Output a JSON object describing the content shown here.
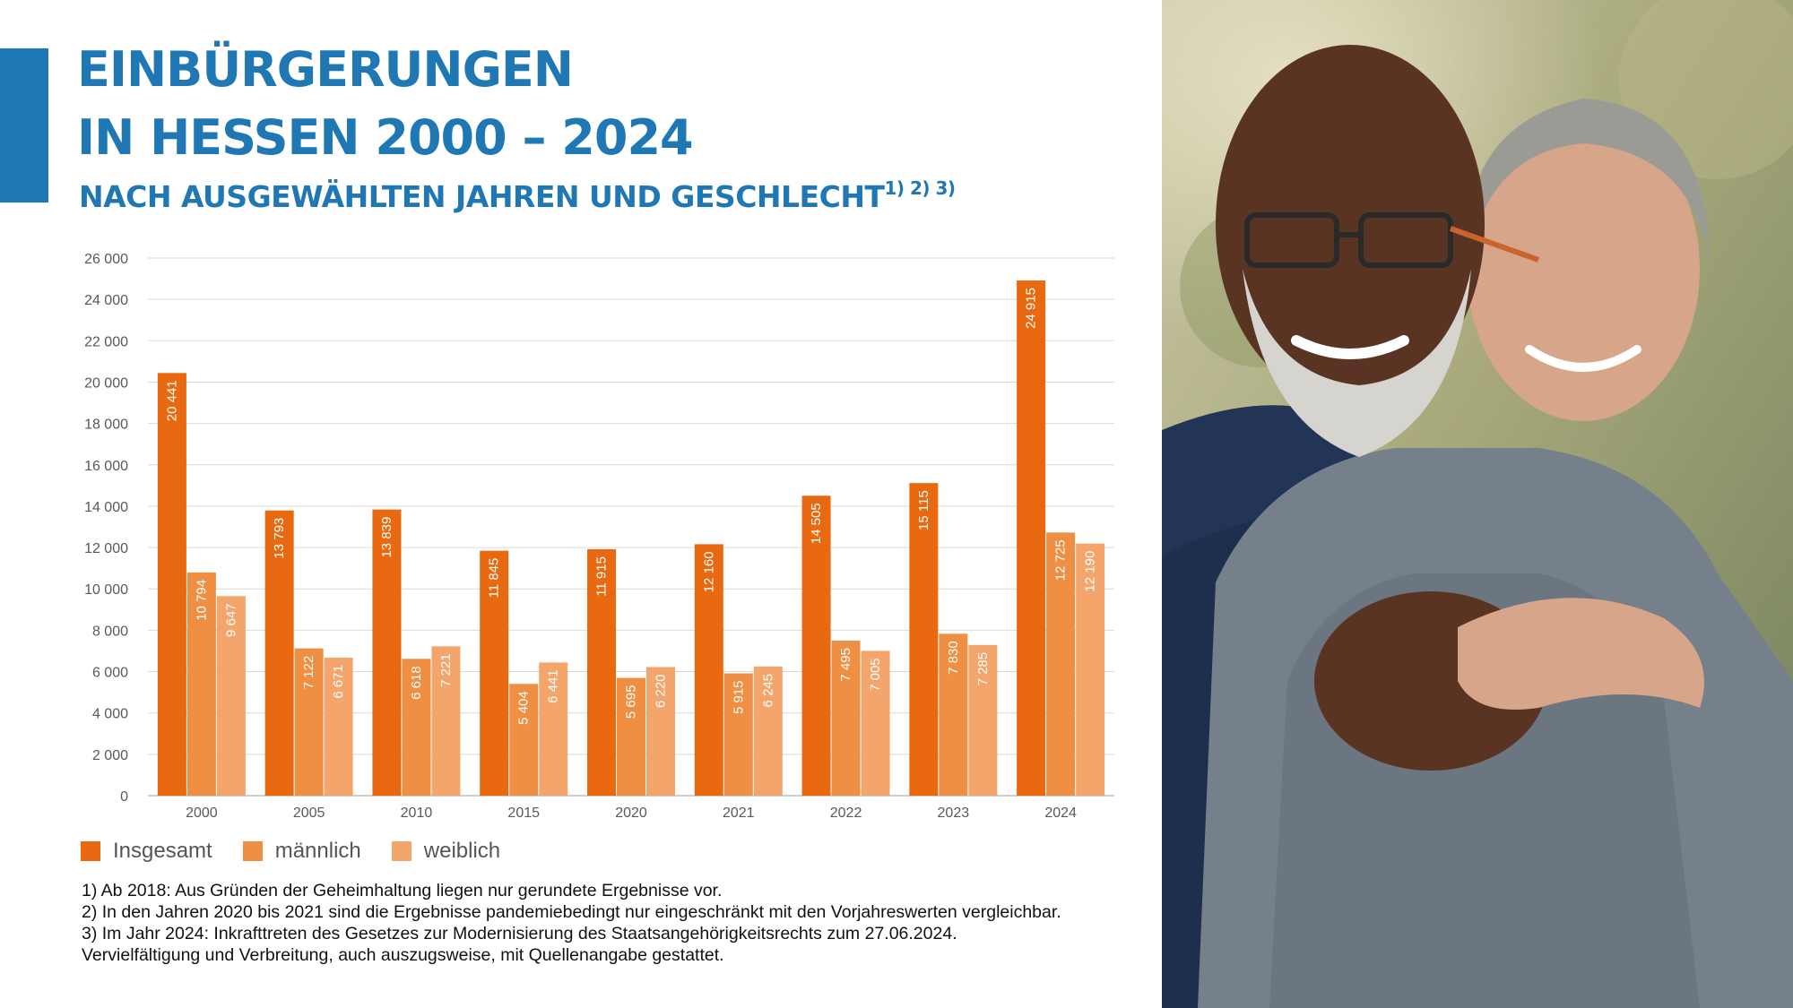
{
  "header": {
    "title_line1": "EINBÜRGERUNGEN",
    "title_line2": "IN HESSEN 2000 – 2024",
    "subtitle": "NACH AUSGEWÄHLTEN JAHREN UND GESCHLECHT",
    "subtitle_notes": "1) 2) 3)"
  },
  "chart_data": {
    "type": "bar",
    "categories": [
      "2000",
      "2005",
      "2010",
      "2015",
      "2020",
      "2021",
      "2022",
      "2023",
      "2024"
    ],
    "series": [
      {
        "name": "Insgesamt",
        "color": "#e8690f",
        "values": [
          20441,
          13793,
          13839,
          11845,
          11915,
          12160,
          14505,
          15115,
          24915
        ],
        "labels": [
          "20 441",
          "13 793",
          "13 839",
          "11 845",
          "11 915",
          "12 160",
          "14 505",
          "15 115",
          "24 915"
        ]
      },
      {
        "name": "männlich",
        "color": "#ee8f43",
        "values": [
          10794,
          7122,
          6618,
          5404,
          5695,
          5915,
          7495,
          7830,
          12725
        ],
        "labels": [
          "10 794",
          "7 122",
          "6 618",
          "5 404",
          "5 695",
          "5 915",
          "7 495",
          "7 830",
          "12 725"
        ]
      },
      {
        "name": "weiblich",
        "color": "#f4a56c",
        "values": [
          9647,
          6671,
          7221,
          6441,
          6220,
          6245,
          7005,
          7285,
          12190
        ],
        "labels": [
          "9 647",
          "6 671",
          "7 221",
          "6 441",
          "6 220",
          "6 245",
          "7 005",
          "7 285",
          "12 190"
        ]
      }
    ],
    "ylim": [
      0,
      26000
    ],
    "yticks": [
      0,
      2000,
      4000,
      6000,
      8000,
      10000,
      12000,
      14000,
      16000,
      18000,
      20000,
      22000,
      24000,
      26000
    ],
    "ytick_labels": [
      "0",
      "2 000",
      "4 000",
      "6 000",
      "8 000",
      "10 000",
      "12 000",
      "14 000",
      "16 000",
      "18 000",
      "20 000",
      "22 000",
      "24 000",
      "26 000"
    ],
    "grid": true,
    "legend_position": "bottom-left"
  },
  "legend": {
    "items": [
      {
        "label": "Insgesamt",
        "color": "#e8690f"
      },
      {
        "label": "männlich",
        "color": "#ee8f43"
      },
      {
        "label": "weiblich",
        "color": "#f4a56c"
      }
    ]
  },
  "footnotes": {
    "note1": "1) Ab 2018: Aus Gründen der Geheimhaltung liegen nur gerundete Ergebnisse vor.",
    "note2": "2) In den Jahren 2020 bis 2021 sind die Ergebnisse pandemiebedingt nur eingeschränkt mit den Vorjahreswerten vergleichbar.",
    "note3": "3) Im Jahr 2024: Inkrafttreten des Gesetzes zur Modernisierung des Staatsangehörigkeitsrechts zum 27.06.2024.",
    "note4": "Vervielfältigung und Verbreitung, auch auszugsweise, mit Quellenangabe gestattet."
  },
  "colors": {
    "brand_blue": "#1f78b4",
    "grid": "#d9d9d9",
    "axis_text": "#595959"
  }
}
